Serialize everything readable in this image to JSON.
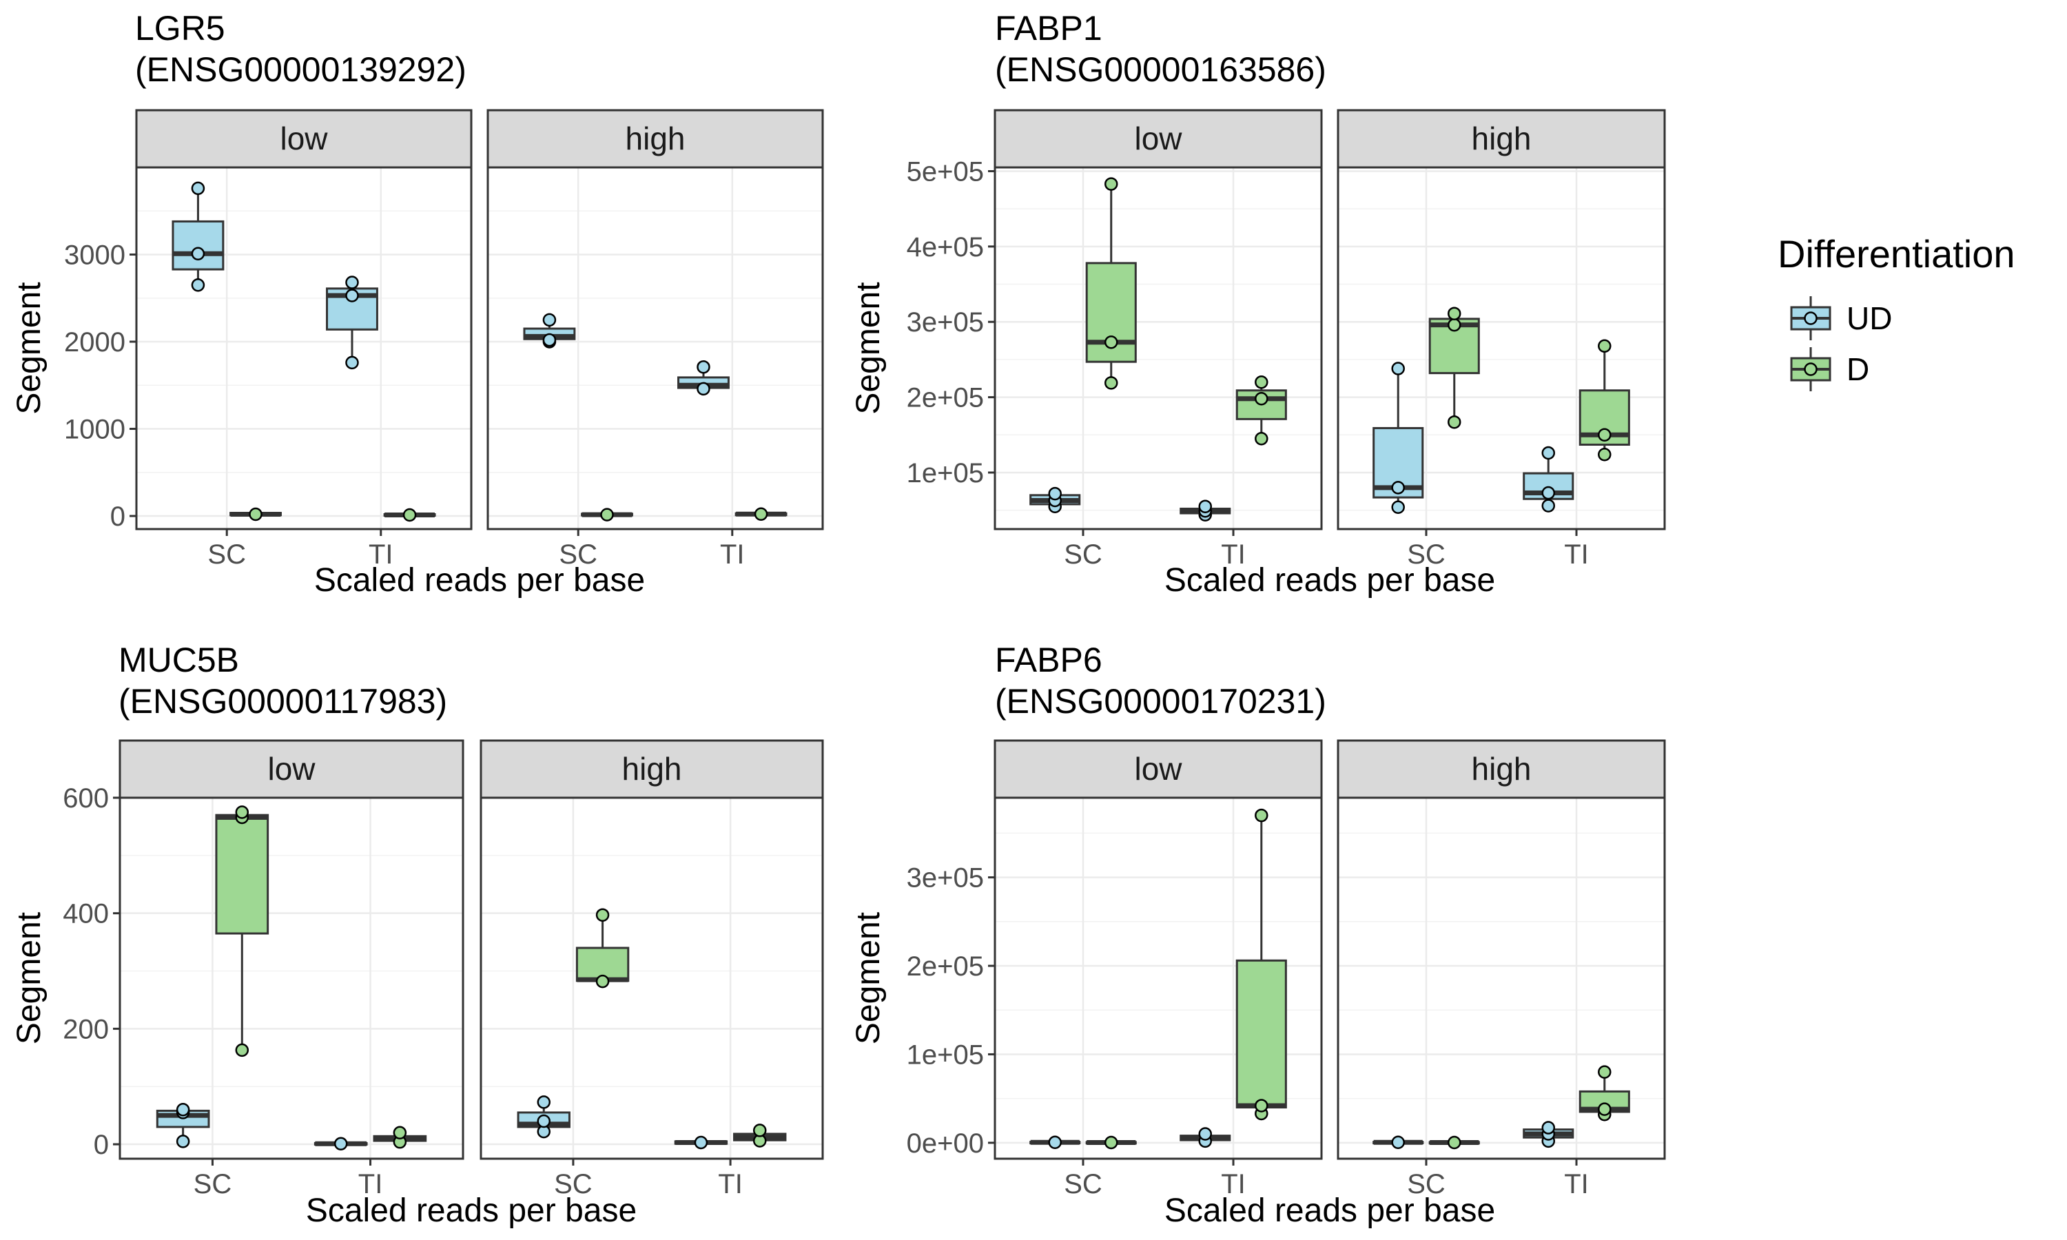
{
  "chart_data": [
    {
      "type": "box",
      "title": "LGR5",
      "subtitle": "(ENSG00000139292)",
      "xlabel": "Scaled reads per base",
      "ylabel": "Segment",
      "ylim": [
        -150,
        4000
      ],
      "yticks": [
        0,
        1000,
        2000,
        3000
      ],
      "ytick_labels": [
        "0",
        "1000",
        "2000",
        "3000"
      ],
      "categories": [
        "SC",
        "TI"
      ],
      "facets": [
        "low",
        "high"
      ],
      "panels": [
        {
          "facet": "low",
          "boxes": [
            {
              "category": "SC",
              "group": "UD",
              "q1": 2830,
              "median": 3010,
              "q3": 3380,
              "lower": 2650,
              "upper": 3760,
              "points": [
                2650,
                3010,
                3760
              ]
            },
            {
              "category": "SC",
              "group": "D",
              "q1": 10,
              "median": 20,
              "q3": 35,
              "lower": 5,
              "upper": 40,
              "points": [
                20
              ]
            },
            {
              "category": "TI",
              "group": "UD",
              "q1": 2140,
              "median": 2530,
              "q3": 2610,
              "lower": 1760,
              "upper": 2680,
              "points": [
                1760,
                2530,
                2680
              ]
            },
            {
              "category": "TI",
              "group": "D",
              "q1": 5,
              "median": 12,
              "q3": 20,
              "lower": 2,
              "upper": 25,
              "points": [
                12
              ]
            }
          ]
        },
        {
          "facet": "high",
          "boxes": [
            {
              "category": "SC",
              "group": "UD",
              "q1": 2030,
              "median": 2060,
              "q3": 2150,
              "lower": 2000,
              "upper": 2250,
              "points": [
                2000,
                2020,
                2250
              ]
            },
            {
              "category": "SC",
              "group": "D",
              "q1": 8,
              "median": 15,
              "q3": 25,
              "lower": 3,
              "upper": 30,
              "points": [
                15
              ]
            },
            {
              "category": "TI",
              "group": "UD",
              "q1": 1470,
              "median": 1500,
              "q3": 1590,
              "lower": 1460,
              "upper": 1710,
              "points": [
                1460,
                1710
              ]
            },
            {
              "category": "TI",
              "group": "D",
              "q1": 10,
              "median": 22,
              "q3": 30,
              "lower": 5,
              "upper": 35,
              "points": [
                22
              ]
            }
          ]
        }
      ]
    },
    {
      "type": "box",
      "title": "FABP1",
      "subtitle": "(ENSG00000163586)",
      "xlabel": "Scaled reads per base",
      "ylabel": "Segment",
      "ylim": [
        25000,
        505000
      ],
      "yticks": [
        100000,
        200000,
        300000,
        400000,
        500000
      ],
      "ytick_labels": [
        "1e+05",
        "2e+05",
        "3e+05",
        "4e+05",
        "5e+05"
      ],
      "categories": [
        "SC",
        "TI"
      ],
      "facets": [
        "low",
        "high"
      ],
      "panels": [
        {
          "facet": "low",
          "boxes": [
            {
              "category": "SC",
              "group": "UD",
              "q1": 58000,
              "median": 63000,
              "q3": 70000,
              "lower": 55000,
              "upper": 72000,
              "points": [
                55000,
                63000,
                72000
              ]
            },
            {
              "category": "SC",
              "group": "D",
              "q1": 247000,
              "median": 273000,
              "q3": 378000,
              "lower": 219000,
              "upper": 483000,
              "points": [
                219000,
                273000,
                483000
              ]
            },
            {
              "category": "TI",
              "group": "UD",
              "q1": 46000,
              "median": 49000,
              "q3": 52000,
              "lower": 44000,
              "upper": 55000,
              "points": [
                44000,
                49000,
                55000
              ]
            },
            {
              "category": "TI",
              "group": "D",
              "q1": 171000,
              "median": 198000,
              "q3": 209000,
              "lower": 145000,
              "upper": 220000,
              "points": [
                145000,
                198000,
                220000
              ]
            }
          ]
        },
        {
          "facet": "high",
          "boxes": [
            {
              "category": "SC",
              "group": "UD",
              "q1": 67000,
              "median": 80000,
              "q3": 159000,
              "lower": 54000,
              "upper": 238000,
              "points": [
                54000,
                80000,
                238000
              ]
            },
            {
              "category": "SC",
              "group": "D",
              "q1": 232000,
              "median": 296000,
              "q3": 304000,
              "lower": 167000,
              "upper": 311000,
              "points": [
                167000,
                296000,
                311000
              ]
            },
            {
              "category": "TI",
              "group": "UD",
              "q1": 65000,
              "median": 73000,
              "q3": 99000,
              "lower": 56000,
              "upper": 126000,
              "points": [
                56000,
                73000,
                126000
              ]
            },
            {
              "category": "TI",
              "group": "D",
              "q1": 137000,
              "median": 150000,
              "q3": 209000,
              "lower": 124000,
              "upper": 268000,
              "points": [
                124000,
                150000,
                268000
              ]
            }
          ]
        }
      ]
    },
    {
      "type": "box",
      "title": "MUC5B",
      "subtitle": "(ENSG00000117983)",
      "xlabel": "Scaled reads per base",
      "ylabel": "Segment",
      "ylim": [
        -25,
        600
      ],
      "yticks": [
        0,
        200,
        400,
        600
      ],
      "ytick_labels": [
        "0",
        "200",
        "400",
        "600"
      ],
      "categories": [
        "SC",
        "TI"
      ],
      "facets": [
        "low",
        "high"
      ],
      "panels": [
        {
          "facet": "low",
          "boxes": [
            {
              "category": "SC",
              "group": "UD",
              "q1": 30,
              "median": 50,
              "q3": 58,
              "lower": 5,
              "upper": 60,
              "points": [
                5,
                55,
                60
              ]
            },
            {
              "category": "SC",
              "group": "D",
              "q1": 365,
              "median": 566,
              "q3": 570,
              "lower": 163,
              "upper": 575,
              "points": [
                163,
                566,
                575
              ]
            },
            {
              "category": "TI",
              "group": "UD",
              "q1": 0,
              "median": 1,
              "q3": 2,
              "lower": 0,
              "upper": 3,
              "points": [
                1
              ]
            },
            {
              "category": "TI",
              "group": "D",
              "q1": 6,
              "median": 10,
              "q3": 14,
              "lower": 3,
              "upper": 20,
              "points": [
                4,
                20
              ]
            }
          ]
        },
        {
          "facet": "high",
          "boxes": [
            {
              "category": "SC",
              "group": "UD",
              "q1": 30,
              "median": 35,
              "q3": 55,
              "lower": 22,
              "upper": 73,
              "points": [
                22,
                40,
                73
              ]
            },
            {
              "category": "SC",
              "group": "D",
              "q1": 283,
              "median": 285,
              "q3": 340,
              "lower": 280,
              "upper": 397,
              "points": [
                282,
                397
              ]
            },
            {
              "category": "TI",
              "group": "UD",
              "q1": 1,
              "median": 3,
              "q3": 5,
              "lower": 0,
              "upper": 6,
              "points": [
                3
              ]
            },
            {
              "category": "TI",
              "group": "D",
              "q1": 7,
              "median": 12,
              "q3": 18,
              "lower": 5,
              "upper": 25,
              "points": [
                6,
                24
              ]
            }
          ]
        }
      ]
    },
    {
      "type": "box",
      "title": "FABP6",
      "subtitle": "(ENSG00000170231)",
      "xlabel": "Scaled reads per base",
      "ylabel": "Segment",
      "ylim": [
        -18000,
        390000
      ],
      "yticks": [
        0,
        100000,
        200000,
        300000
      ],
      "ytick_labels": [
        "0e+00",
        "1e+05",
        "2e+05",
        "3e+05"
      ],
      "categories": [
        "SC",
        "TI"
      ],
      "facets": [
        "low",
        "high"
      ],
      "panels": [
        {
          "facet": "low",
          "boxes": [
            {
              "category": "SC",
              "group": "UD",
              "q1": 0,
              "median": 500,
              "q3": 1000,
              "lower": 0,
              "upper": 1500,
              "points": [
                500
              ]
            },
            {
              "category": "SC",
              "group": "D",
              "q1": 0,
              "median": 300,
              "q3": 800,
              "lower": 0,
              "upper": 1000,
              "points": [
                300
              ]
            },
            {
              "category": "TI",
              "group": "UD",
              "q1": 3000,
              "median": 5000,
              "q3": 8000,
              "lower": 1000,
              "upper": 11000,
              "points": [
                2000,
                10000
              ]
            },
            {
              "category": "TI",
              "group": "D",
              "q1": 40000,
              "median": 42000,
              "q3": 206000,
              "lower": 33000,
              "upper": 370000,
              "points": [
                33000,
                42000,
                370000
              ]
            }
          ]
        },
        {
          "facet": "high",
          "boxes": [
            {
              "category": "SC",
              "group": "UD",
              "q1": 0,
              "median": 500,
              "q3": 1000,
              "lower": 0,
              "upper": 1500,
              "points": [
                500
              ]
            },
            {
              "category": "SC",
              "group": "D",
              "q1": 0,
              "median": 300,
              "q3": 800,
              "lower": 0,
              "upper": 1000,
              "points": [
                300
              ]
            },
            {
              "category": "TI",
              "group": "UD",
              "q1": 6000,
              "median": 10000,
              "q3": 15000,
              "lower": 2000,
              "upper": 18000,
              "points": [
                2000,
                10000,
                17000
              ]
            },
            {
              "category": "TI",
              "group": "D",
              "q1": 35000,
              "median": 38000,
              "q3": 58000,
              "lower": 32000,
              "upper": 80000,
              "points": [
                32000,
                38000,
                80000
              ]
            }
          ]
        }
      ]
    }
  ],
  "legend": {
    "title": "Differentiation",
    "placement": "right",
    "items": [
      {
        "label": "UD",
        "color": "#a6d9ea"
      },
      {
        "label": "D",
        "color": "#9ed893"
      }
    ]
  },
  "colors": {
    "UD": "#a6d9ea",
    "D": "#9ed893",
    "strip": "#d9d9d9",
    "grid": "#ebebeb",
    "outline": "#333333"
  }
}
